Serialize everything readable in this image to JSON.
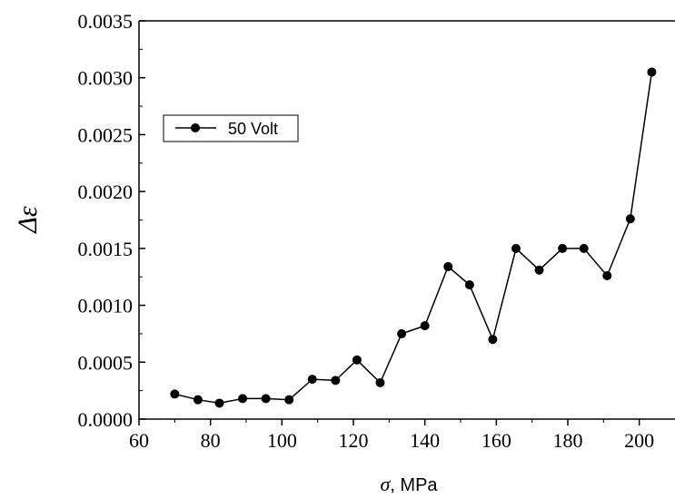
{
  "chart_data": {
    "type": "line",
    "title": "",
    "xlabel": "σ, MPa",
    "xlabel_symbol": "σ",
    "xlabel_rest": ", MPa",
    "ylabel": "Δε",
    "xlim": [
      60,
      210
    ],
    "ylim": [
      0.0,
      0.0035
    ],
    "x_ticks": [
      60,
      80,
      100,
      120,
      140,
      160,
      180,
      200
    ],
    "x_tick_labels": [
      "60",
      "80",
      "100",
      "120",
      "140",
      "160",
      "180",
      "200"
    ],
    "y_ticks": [
      0.0,
      0.0005,
      0.001,
      0.0015,
      0.002,
      0.0025,
      0.003,
      0.0035
    ],
    "y_tick_labels": [
      "0.0000",
      "0.0005",
      "0.0010",
      "0.0015",
      "0.0020",
      "0.0025",
      "0.0030",
      "0.0035"
    ],
    "grid": false,
    "legend_position": "top-left",
    "series": [
      {
        "name": "50 Volt",
        "color": "#000000",
        "marker": "circle",
        "x": [
          70,
          76.5,
          82.5,
          89,
          95.5,
          102,
          108.5,
          115,
          121,
          127.5,
          133.5,
          140,
          146.5,
          152.5,
          159,
          165.5,
          172,
          178.5,
          184.5,
          191,
          197.5,
          203.5
        ],
        "y": [
          0.00022,
          0.00017,
          0.00014,
          0.00018,
          0.00018,
          0.00017,
          0.00035,
          0.00034,
          0.00052,
          0.00032,
          0.00075,
          0.00082,
          0.00134,
          0.00118,
          0.0007,
          0.0015,
          0.00131,
          0.0015,
          0.0015,
          0.00126,
          0.00176,
          0.00305
        ]
      }
    ]
  }
}
